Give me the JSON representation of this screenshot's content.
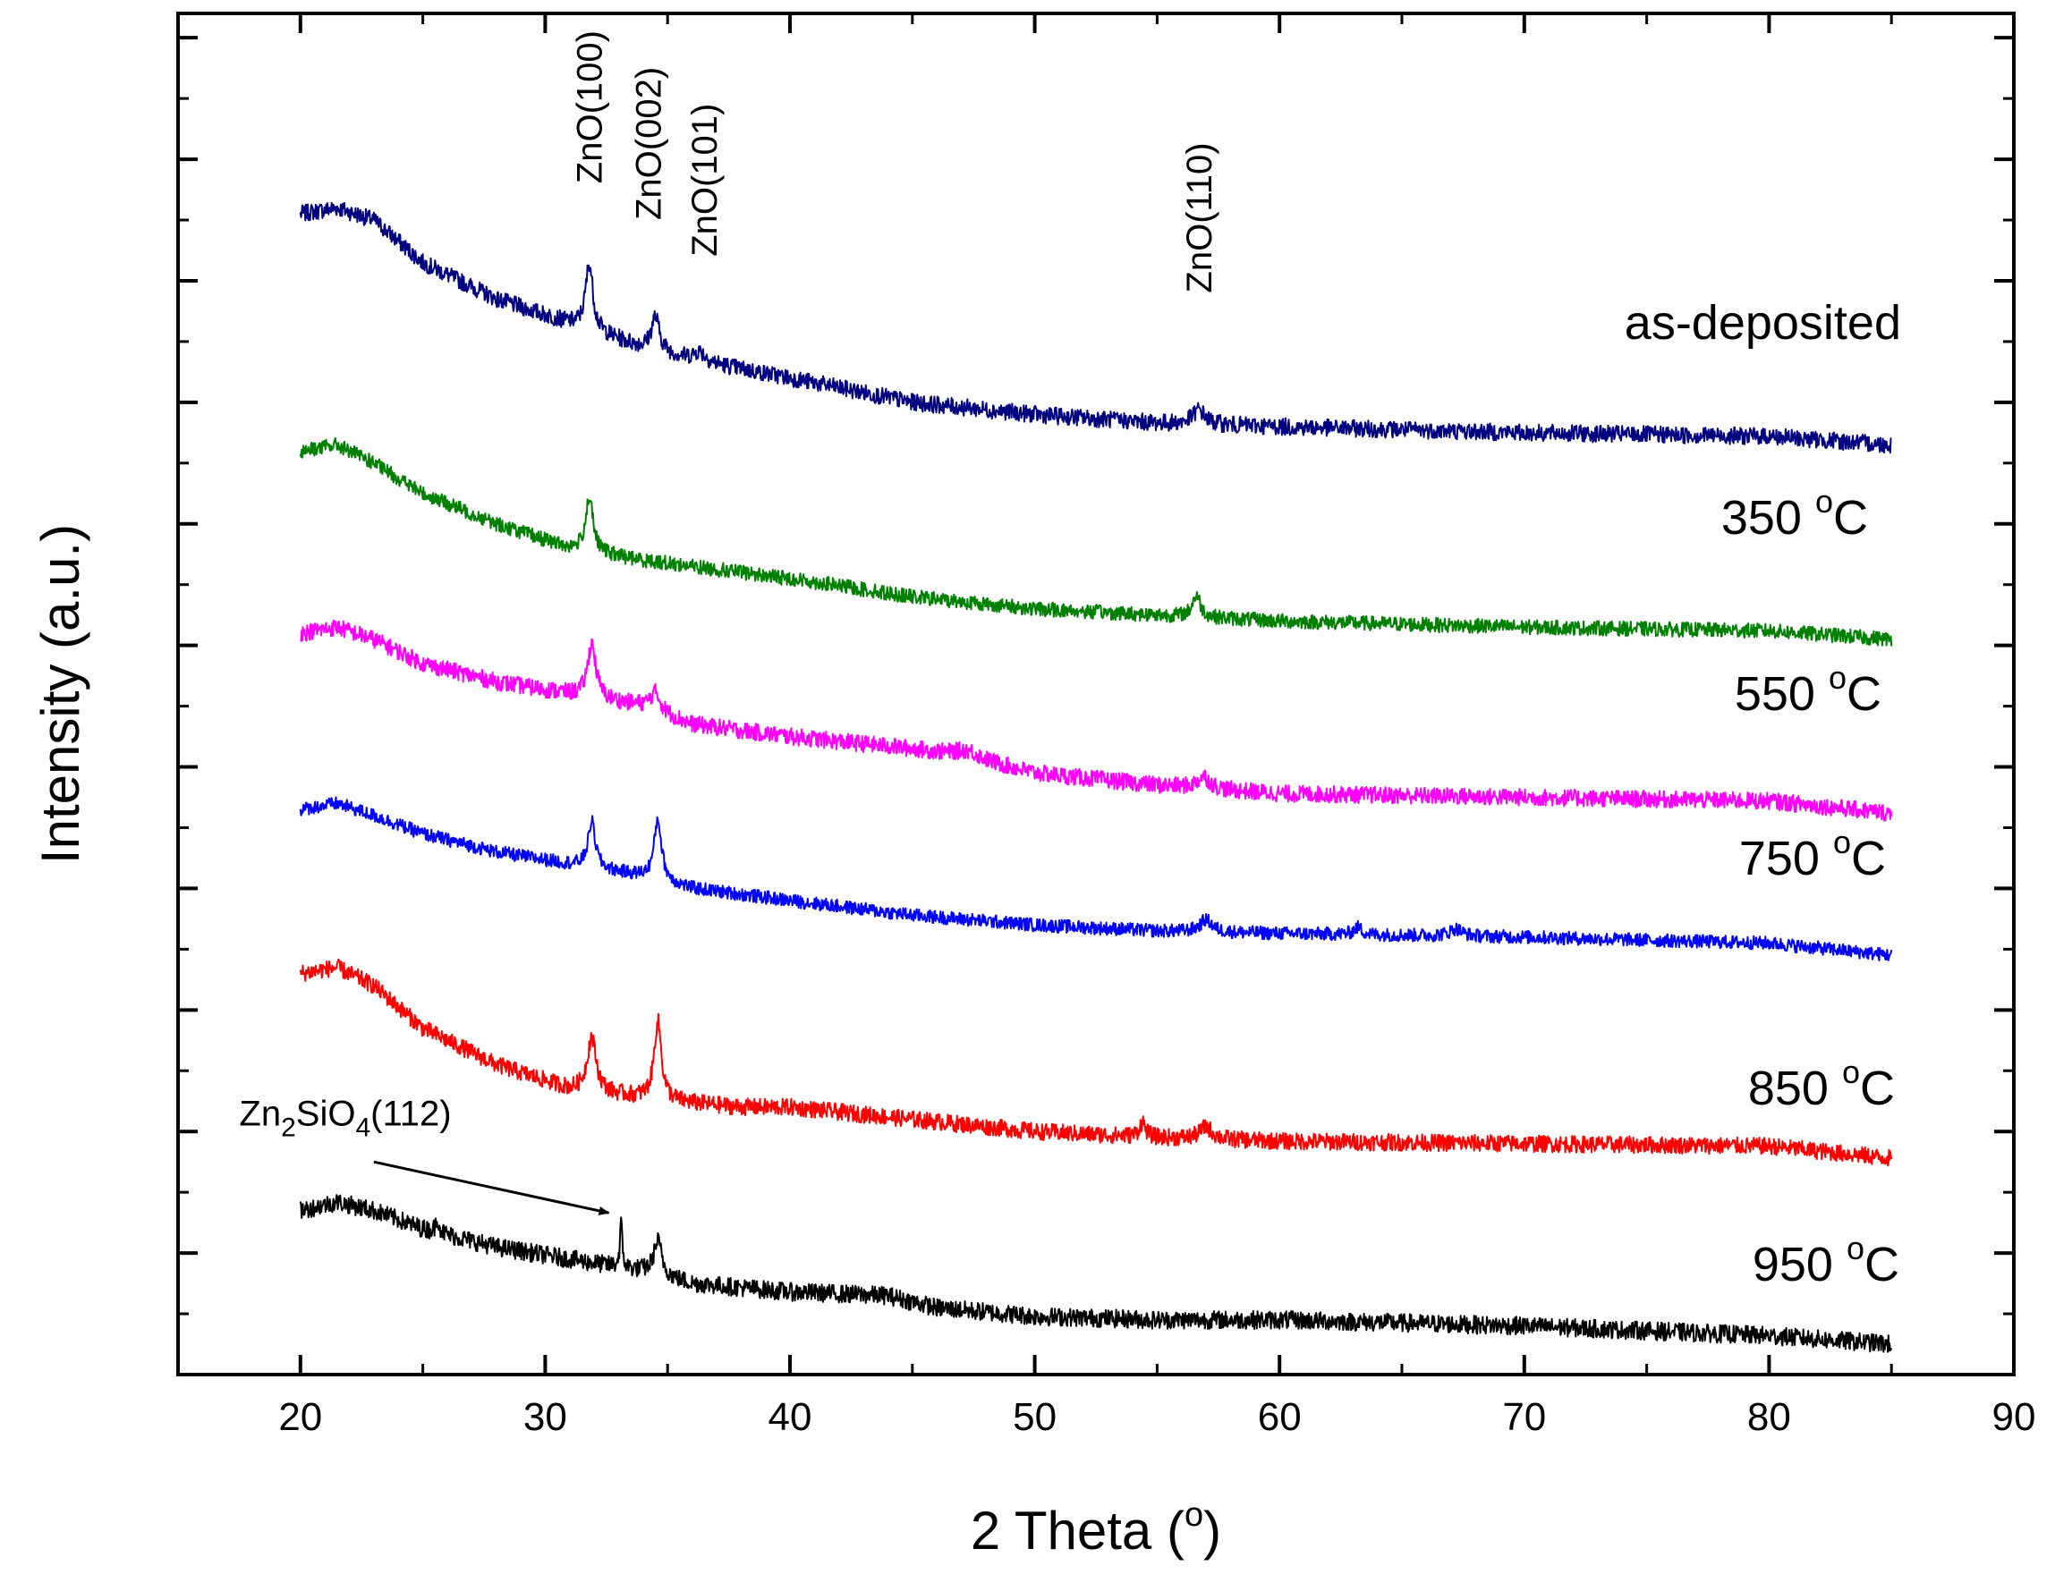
{
  "chart_data": {
    "type": "line",
    "xlabel": "2 Theta (",
    "xlabel_sup": "o",
    "xlabel_end": ")",
    "ylabel": "Intensity (a.u.)",
    "xlim": [
      15,
      90
    ],
    "ylim": [
      0,
      11.2
    ],
    "x_ticks": [
      20,
      30,
      40,
      50,
      60,
      70,
      80,
      90
    ],
    "x_tick_labels": [
      "20",
      "30",
      "40",
      "50",
      "60",
      "70",
      "80",
      "90"
    ],
    "y_ticks_major": [
      1,
      2,
      3,
      4,
      5,
      6,
      7,
      8,
      9,
      10,
      11
    ],
    "y_tick_labels_shown": false,
    "grid": false,
    "series": [
      {
        "name": "as-deposited",
        "label_text": "as-deposited",
        "label_unit_sup": "",
        "label_unit": "",
        "color": "#000080",
        "baseline_points": [
          [
            20,
            9.55
          ],
          [
            21.5,
            9.6
          ],
          [
            23,
            9.5
          ],
          [
            25,
            9.15
          ],
          [
            28,
            8.85
          ],
          [
            31,
            8.65
          ],
          [
            34,
            8.45
          ],
          [
            36,
            8.35
          ],
          [
            40,
            8.2
          ],
          [
            45,
            8.0
          ],
          [
            50,
            7.9
          ],
          [
            55,
            7.83
          ],
          [
            60,
            7.8
          ],
          [
            70,
            7.75
          ],
          [
            80,
            7.72
          ],
          [
            85,
            7.65
          ]
        ],
        "peaks": [
          [
            31.8,
            0.55,
            0.18
          ],
          [
            34.5,
            0.28,
            0.2
          ],
          [
            36.3,
            0.08,
            0.3
          ],
          [
            56.7,
            0.12,
            0.3
          ]
        ],
        "noise": 0.07
      },
      {
        "name": "350 °C",
        "label_text": "350 ",
        "label_unit_sup": "o",
        "label_unit": "C",
        "color": "#008000",
        "baseline_points": [
          [
            20,
            7.6
          ],
          [
            21.5,
            7.65
          ],
          [
            23,
            7.5
          ],
          [
            25,
            7.25
          ],
          [
            28,
            7.0
          ],
          [
            31,
            6.8
          ],
          [
            34,
            6.7
          ],
          [
            40,
            6.55
          ],
          [
            45,
            6.4
          ],
          [
            50,
            6.3
          ],
          [
            55,
            6.25
          ],
          [
            60,
            6.2
          ],
          [
            70,
            6.15
          ],
          [
            80,
            6.12
          ],
          [
            85,
            6.05
          ]
        ],
        "peaks": [
          [
            31.8,
            0.45,
            0.18
          ],
          [
            56.6,
            0.18,
            0.2
          ]
        ],
        "noise": 0.06
      },
      {
        "name": "550 °C",
        "label_text": "550 ",
        "label_unit_sup": "o",
        "label_unit": "C",
        "color": "#ff00ff",
        "baseline_points": [
          [
            20,
            6.1
          ],
          [
            21.5,
            6.15
          ],
          [
            23,
            6.05
          ],
          [
            25,
            5.85
          ],
          [
            28,
            5.7
          ],
          [
            31,
            5.6
          ],
          [
            34,
            5.5
          ],
          [
            36,
            5.35
          ],
          [
            40,
            5.25
          ],
          [
            45,
            5.15
          ],
          [
            47,
            5.1
          ],
          [
            50,
            4.95
          ],
          [
            55,
            4.85
          ],
          [
            60,
            4.78
          ],
          [
            70,
            4.75
          ],
          [
            80,
            4.72
          ],
          [
            85,
            4.62
          ]
        ],
        "peaks": [
          [
            31.9,
            0.45,
            0.2
          ],
          [
            34.5,
            0.15,
            0.25
          ],
          [
            56.9,
            0.1,
            0.3
          ],
          [
            47.3,
            0.05,
            0.5
          ]
        ],
        "noise": 0.07
      },
      {
        "name": "750 °C",
        "label_text": "750 ",
        "label_unit_sup": "o",
        "label_unit": "C",
        "color": "#0000ff",
        "baseline_points": [
          [
            20,
            4.65
          ],
          [
            21.5,
            4.7
          ],
          [
            23,
            4.6
          ],
          [
            25,
            4.45
          ],
          [
            28,
            4.3
          ],
          [
            31,
            4.2
          ],
          [
            34,
            4.1
          ],
          [
            36,
            4.0
          ],
          [
            40,
            3.9
          ],
          [
            45,
            3.78
          ],
          [
            50,
            3.7
          ],
          [
            55,
            3.65
          ],
          [
            60,
            3.63
          ],
          [
            70,
            3.6
          ],
          [
            80,
            3.55
          ],
          [
            85,
            3.45
          ]
        ],
        "peaks": [
          [
            31.9,
            0.38,
            0.18
          ],
          [
            34.6,
            0.5,
            0.18
          ],
          [
            57.0,
            0.1,
            0.3
          ],
          [
            63.2,
            0.06,
            0.2
          ],
          [
            67.2,
            0.06,
            0.3
          ]
        ],
        "noise": 0.055
      },
      {
        "name": "850 °C",
        "label_text": "850 ",
        "label_unit_sup": "o",
        "label_unit": "C",
        "color": "#ff0000",
        "baseline_points": [
          [
            20,
            3.3
          ],
          [
            21.5,
            3.35
          ],
          [
            23,
            3.2
          ],
          [
            25,
            2.85
          ],
          [
            28,
            2.55
          ],
          [
            31,
            2.35
          ],
          [
            33,
            2.3
          ],
          [
            35,
            2.25
          ],
          [
            38,
            2.2
          ],
          [
            40,
            2.2
          ],
          [
            45,
            2.1
          ],
          [
            50,
            2.0
          ],
          [
            55,
            1.95
          ],
          [
            60,
            1.92
          ],
          [
            70,
            1.9
          ],
          [
            80,
            1.88
          ],
          [
            85,
            1.78
          ]
        ],
        "peaks": [
          [
            31.9,
            0.45,
            0.22
          ],
          [
            34.6,
            0.65,
            0.18
          ],
          [
            54.4,
            0.12,
            0.15
          ],
          [
            57.0,
            0.1,
            0.3
          ]
        ],
        "noise": 0.07
      },
      {
        "name": "950 °C",
        "label_text": "950 ",
        "label_unit_sup": "o",
        "label_unit": "C",
        "color": "#000000",
        "baseline_points": [
          [
            20,
            1.35
          ],
          [
            21.5,
            1.42
          ],
          [
            23,
            1.35
          ],
          [
            25,
            1.2
          ],
          [
            28,
            1.05
          ],
          [
            31,
            0.95
          ],
          [
            34,
            0.85
          ],
          [
            36,
            0.75
          ],
          [
            40,
            0.68
          ],
          [
            44,
            0.65
          ],
          [
            46,
            0.55
          ],
          [
            50,
            0.48
          ],
          [
            55,
            0.45
          ],
          [
            60,
            0.45
          ],
          [
            70,
            0.4
          ],
          [
            80,
            0.32
          ],
          [
            85,
            0.25
          ]
        ],
        "peaks": [
          [
            33.1,
            0.35,
            0.06
          ],
          [
            34.6,
            0.28,
            0.2
          ],
          [
            25.6,
            0.12,
            0.08
          ]
        ],
        "noise": 0.075
      }
    ],
    "peak_labels": [
      {
        "text": "ZnO(100)",
        "x": 31.8,
        "y": 9.8
      },
      {
        "text": "ZnO(002)",
        "x": 34.2,
        "y": 9.5
      },
      {
        "text": "ZnO(101)",
        "x": 36.5,
        "y": 9.2
      },
      {
        "text": "ZnO(110)",
        "x": 56.7,
        "y": 8.9
      }
    ],
    "annotation": {
      "text_main": "Zn",
      "sub1": "2",
      "text_mid": "SiO",
      "sub2": "4",
      "text_end": "(112)",
      "text_x": 17.5,
      "text_y": 2.05,
      "arrow_from": [
        23.0,
        1.75
      ],
      "arrow_to": [
        32.6,
        1.33
      ]
    }
  }
}
